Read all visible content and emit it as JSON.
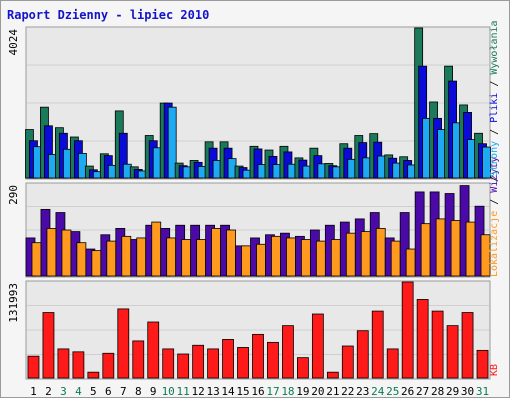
{
  "chart_data": {
    "type": "bar",
    "title": "Raport Dzienny -  lipiec 2010",
    "categories": [
      "1",
      "2",
      "3",
      "4",
      "5",
      "6",
      "7",
      "8",
      "9",
      "10",
      "11",
      "12",
      "13",
      "14",
      "15",
      "16",
      "17",
      "18",
      "19",
      "20",
      "21",
      "22",
      "23",
      "24",
      "25",
      "26",
      "27",
      "28",
      "29",
      "30",
      "31"
    ],
    "weekend_days": [
      "3",
      "4",
      "10",
      "11",
      "17",
      "18",
      "24",
      "25",
      "31"
    ],
    "panels": [
      {
        "ymax_label": "4024",
        "ymax": 4024,
        "series": [
          {
            "name": "Wywołania",
            "color": "#1a7a5a",
            "values": [
              1300,
              1900,
              1350,
              1100,
              320,
              650,
              1800,
              300,
              1140,
              2010,
              400,
              470,
              970,
              970,
              320,
              850,
              750,
              850,
              540,
              800,
              390,
              920,
              1140,
              1190,
              620,
              570,
              4024,
              2040,
              3000,
              1960,
              1200
            ]
          },
          {
            "name": "Pliki",
            "color": "#0b0bd9",
            "values": [
              1000,
              1400,
              1200,
              1000,
              220,
              600,
              1200,
              230,
              1000,
              2010,
              330,
              420,
              800,
              800,
              280,
              780,
              580,
              700,
              480,
              600,
              330,
              800,
              950,
              960,
              530,
              470,
              3000,
              1600,
              2600,
              1760,
              920
            ]
          },
          {
            "name": "Strony",
            "color": "#1eaaf2",
            "values": [
              840,
              630,
              770,
              660,
              170,
              340,
              370,
              190,
              810,
              1900,
              300,
              310,
              470,
              520,
              210,
              360,
              360,
              370,
              320,
              380,
              300,
              500,
              540,
              590,
              400,
              350,
              1600,
              1300,
              1480,
              1030,
              830
            ]
          }
        ]
      },
      {
        "ymax_label": "290",
        "ymax": 290,
        "series": [
          {
            "name": "Wizyty",
            "color": "#4b0aa8",
            "values": [
              120,
              210,
              200,
              140,
              85,
              130,
              150,
              115,
              160,
              150,
              160,
              160,
              160,
              160,
              95,
              120,
              130,
              135,
              125,
              145,
              160,
              170,
              180,
              200,
              120,
              200,
              265,
              265,
              260,
              285,
              220
            ]
          },
          {
            "name": "Lokalizacje",
            "color": "#ff9a1e",
            "values": [
              105,
              150,
              145,
              105,
              80,
              110,
              125,
              120,
              170,
              120,
              115,
              115,
              150,
              145,
              95,
              100,
              125,
              120,
              115,
              110,
              115,
              135,
              140,
              150,
              110,
              85,
              165,
              180,
              175,
              170,
              130
            ]
          }
        ]
      },
      {
        "ymax_label": "131993",
        "ymax": 131993,
        "series": [
          {
            "name": "KB",
            "color": "#ff1a1a",
            "values": [
              30000,
              90000,
              40000,
              36000,
              8000,
              34000,
              95000,
              51000,
              77000,
              40000,
              33000,
              45000,
              40000,
              53000,
              42000,
              60000,
              49000,
              72000,
              28000,
              88000,
              8000,
              44000,
              65000,
              92000,
              40000,
              131993,
              108000,
              92000,
              72000,
              90000,
              38000
            ]
          }
        ]
      }
    ],
    "right_label_groups": [
      {
        "items": [
          {
            "text": "Lokalizacje",
            "color": "#ff9a1e"
          },
          {
            "text": "Wizyty",
            "color": "#4b0aa8"
          }
        ]
      },
      {
        "items": [
          {
            "text": "Strony",
            "color": "#1eaaf2"
          },
          {
            "text": "Pliki",
            "color": "#0b0bd9"
          },
          {
            "text": "Wywołania",
            "color": "#1a7a5a"
          }
        ]
      }
    ],
    "separator": " / ",
    "kb_label": {
      "text": "KB",
      "color": "#ff1a1a"
    },
    "colors": {
      "title": "#1414c8",
      "weekday_label": "#000000",
      "weekend_label": "#0a7a55",
      "panel_bg": "#e8e8e8",
      "gridline": "#cfcfcf"
    },
    "grid": true
  }
}
